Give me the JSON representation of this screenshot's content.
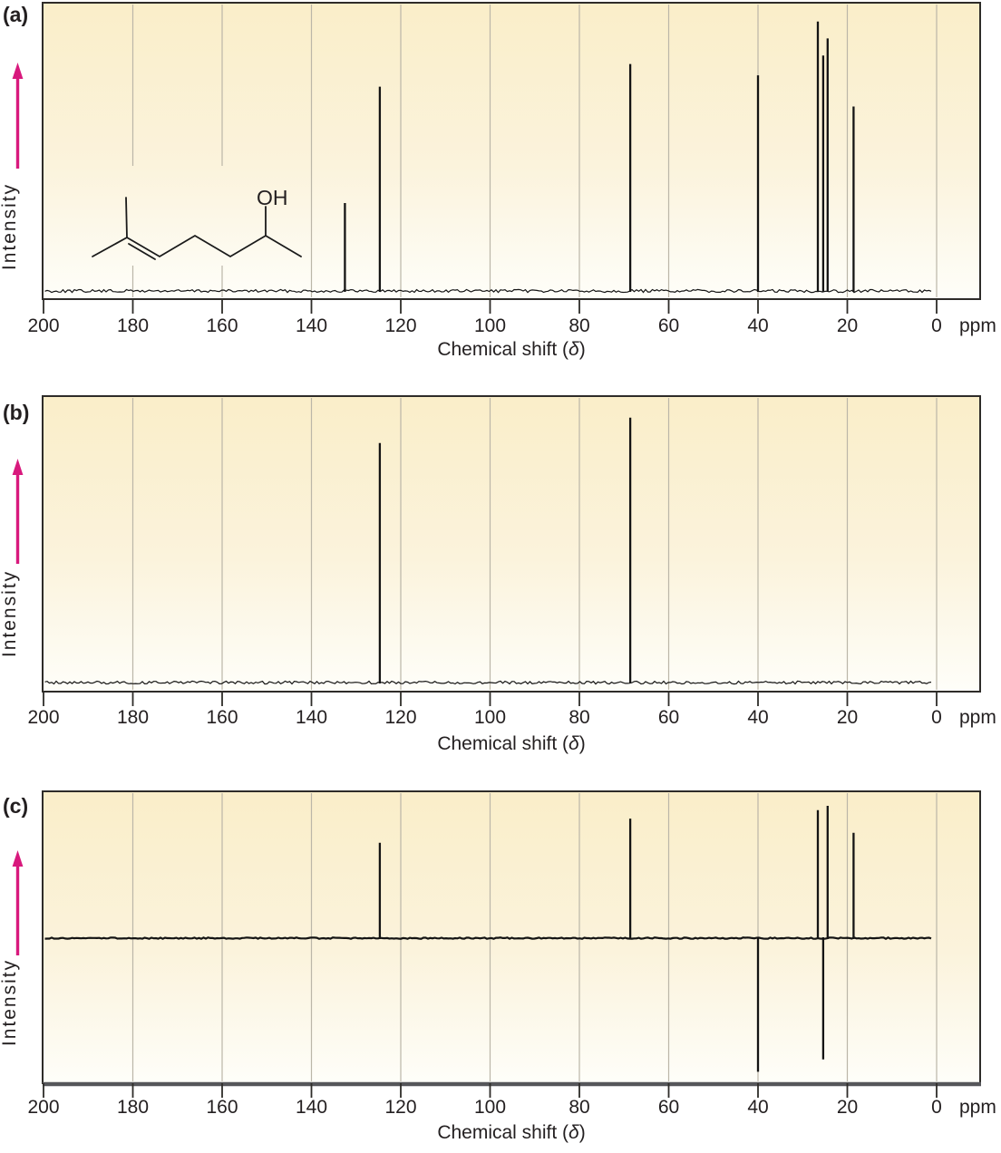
{
  "colors": {
    "arrow": "#D8197D",
    "gridline": "#BBB6A8",
    "spectrum": "#141414",
    "frame": "#2E2C29",
    "axis_text": "#231F20",
    "plot_bg_top": "#FAEEC9",
    "plot_bg_mid": "#FBF3DC",
    "plot_bg_bottom": "#FEFEF9",
    "panel_c_base_rule": "#55565A"
  },
  "panels": [
    {
      "label": "(a)",
      "y_axis_label": "Intensity",
      "x_axis_prefix": "Chemical shift (",
      "x_axis_delta": "δ",
      "x_axis_suffix": ")",
      "unit_label": "ppm",
      "molecule": {
        "hydroxyl_label": "OH"
      }
    },
    {
      "label": "(b)",
      "y_axis_label": "Intensity",
      "x_axis_prefix": "Chemical shift (",
      "x_axis_delta": "δ",
      "x_axis_suffix": ")",
      "unit_label": "ppm"
    },
    {
      "label": "(c)",
      "y_axis_label": "Intensity",
      "x_axis_prefix": "Chemical shift (",
      "x_axis_delta": "δ",
      "x_axis_suffix": ")",
      "unit_label": "ppm"
    }
  ],
  "chart_data": [
    {
      "type": "line",
      "subtype": "13C NMR spectrum",
      "x_axis": {
        "min": 0,
        "max": 200,
        "unit": "ppm",
        "direction": "right-to-left",
        "ticks": [
          200,
          180,
          160,
          140,
          120,
          100,
          80,
          60,
          40,
          20,
          0
        ]
      },
      "y_axis": {
        "label": "Intensity"
      },
      "gridlines_ppm": [
        180,
        160,
        140,
        120,
        100,
        80,
        60,
        40,
        20,
        0
      ],
      "peaks": [
        {
          "ppm": 132.5,
          "rel_intensity": 0.31
        },
        {
          "ppm": 124.7,
          "rel_intensity": 0.72
        },
        {
          "ppm": 68.6,
          "rel_intensity": 0.8
        },
        {
          "ppm": 40.0,
          "rel_intensity": 0.76
        },
        {
          "ppm": 26.6,
          "rel_intensity": 0.95
        },
        {
          "ppm": 25.4,
          "rel_intensity": 0.83
        },
        {
          "ppm": 24.4,
          "rel_intensity": 0.89
        },
        {
          "ppm": 18.6,
          "rel_intensity": 0.65
        }
      ]
    },
    {
      "type": "line",
      "subtype": "DEPT-90 NMR spectrum (CH carbons only)",
      "x_axis": {
        "min": 0,
        "max": 200,
        "unit": "ppm",
        "direction": "right-to-left",
        "ticks": [
          200,
          180,
          160,
          140,
          120,
          100,
          80,
          60,
          40,
          20,
          0
        ]
      },
      "y_axis": {
        "label": "Intensity"
      },
      "gridlines_ppm": [
        180,
        160,
        140,
        120,
        100,
        80,
        60,
        40,
        20,
        0
      ],
      "peaks": [
        {
          "ppm": 124.7,
          "rel_intensity": 0.85
        },
        {
          "ppm": 68.6,
          "rel_intensity": 0.94
        }
      ]
    },
    {
      "type": "line",
      "subtype": "DEPT-135 NMR spectrum (CH/CH3 up, CH2 down)",
      "x_axis": {
        "min": 0,
        "max": 200,
        "unit": "ppm",
        "direction": "right-to-left",
        "ticks": [
          200,
          180,
          160,
          140,
          120,
          100,
          80,
          60,
          40,
          20,
          0
        ]
      },
      "y_axis": {
        "label": "Intensity"
      },
      "gridlines_ppm": [
        180,
        160,
        140,
        120,
        100,
        80,
        60,
        40,
        20,
        0
      ],
      "peaks": [
        {
          "ppm": 124.7,
          "rel_intensity": 0.67
        },
        {
          "ppm": 68.6,
          "rel_intensity": 0.84
        },
        {
          "ppm": 40.0,
          "rel_intensity": -0.97
        },
        {
          "ppm": 26.6,
          "rel_intensity": 0.9
        },
        {
          "ppm": 25.4,
          "rel_intensity": -0.88
        },
        {
          "ppm": 24.4,
          "rel_intensity": 0.93
        },
        {
          "ppm": 18.6,
          "rel_intensity": 0.74
        }
      ]
    }
  ]
}
